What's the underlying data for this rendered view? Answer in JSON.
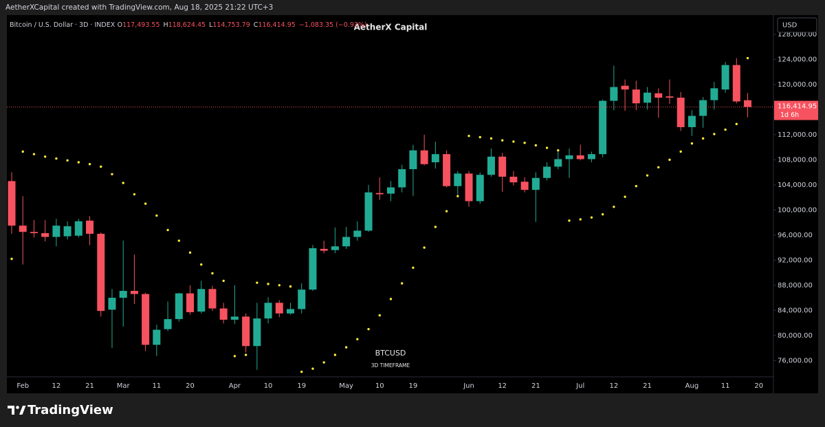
{
  "attribution": "AetherXCapital created with TradingView.com, Aug 18, 2025 21:22 UTC+3",
  "brand": "TradingView",
  "chart_data": {
    "type": "candlestick",
    "title": "AetherX Capital",
    "symbol": "Bitcoin / U.S. Dollar · 3D · INDEX",
    "legend_values": [
      {
        "label": "O",
        "value": "117,493.55"
      },
      {
        "label": "H",
        "value": "118,624.45"
      },
      {
        "label": "L",
        "value": "114,753.79"
      },
      {
        "label": "C",
        "value": "116,414.95"
      }
    ],
    "change": "−1,083.35 (−0.92%)",
    "watermark": "BTCUSD",
    "watermark_sub": "3D TIMEFRAME",
    "currency": "USD",
    "last_price_label": "116,414.95",
    "countdown": "1d 6h",
    "up_color": "#22ab94",
    "down_color": "#f7525f",
    "sar_color": "#ffeb3b",
    "grid": false,
    "categories": [
      null,
      "Feb",
      null,
      null,
      "12",
      null,
      null,
      "21",
      null,
      null,
      "Mar",
      null,
      null,
      "11",
      null,
      null,
      "20",
      null,
      null,
      null,
      "Apr",
      null,
      null,
      "10",
      null,
      null,
      "19",
      null,
      null,
      null,
      "May",
      null,
      null,
      "10",
      null,
      null,
      "19",
      null,
      null,
      null,
      null,
      "Jun",
      null,
      null,
      "12",
      null,
      null,
      "21",
      null,
      null,
      null,
      "Jul",
      null,
      null,
      "12",
      null,
      null,
      "21",
      null,
      null,
      null,
      "Aug",
      null,
      null,
      "11",
      null,
      null,
      "20"
    ],
    "open": [
      104600,
      97500,
      96500,
      96300,
      95700,
      95800,
      95900,
      98300,
      96200,
      84100,
      86000,
      87100,
      86600,
      78500,
      81000,
      82600,
      86700,
      83800,
      87400,
      84300,
      82500,
      83000,
      78300,
      82700,
      85200,
      83500,
      84200,
      87300,
      93800,
      93600,
      94200,
      95700,
      96700,
      102700,
      102600,
      103600,
      106500,
      109500,
      107600,
      108900,
      103800,
      105800,
      101400,
      105600,
      108500,
      105300,
      104500,
      103200,
      105100,
      106900,
      108100,
      108700,
      108100,
      108900,
      117400,
      119800,
      119200,
      117100,
      118600,
      118100,
      117900,
      113200,
      115000,
      117500,
      119200,
      123100,
      117493.55,
      null
    ],
    "high": [
      106000,
      102200,
      98400,
      98400,
      98600,
      98200,
      98600,
      99000,
      96400,
      87400,
      95100,
      92900,
      86800,
      81700,
      85400,
      86800,
      88000,
      88700,
      87900,
      85200,
      88000,
      83500,
      85200,
      86100,
      85600,
      85200,
      88300,
      94400,
      95100,
      97200,
      97300,
      98200,
      104000,
      105200,
      104600,
      107200,
      110400,
      112000,
      110900,
      109500,
      106200,
      106200,
      106000,
      109800,
      109100,
      106200,
      105200,
      106000,
      107600,
      109300,
      109800,
      110400,
      109300,
      117600,
      123000,
      120800,
      120600,
      119600,
      119400,
      120800,
      118800,
      115900,
      118000,
      120400,
      123600,
      124200,
      118624.45,
      null
    ],
    "low": [
      96200,
      91300,
      95600,
      95000,
      94200,
      95300,
      95600,
      94400,
      83000,
      78000,
      81400,
      85000,
      77500,
      76700,
      80700,
      82200,
      83300,
      83500,
      83900,
      81900,
      81800,
      77300,
      74500,
      81900,
      82900,
      83300,
      83500,
      87100,
      93100,
      93100,
      93800,
      95100,
      96500,
      101600,
      101400,
      102800,
      102200,
      107100,
      106600,
      103600,
      102200,
      100500,
      101000,
      105300,
      102900,
      103900,
      102800,
      98100,
      104700,
      106500,
      105100,
      107900,
      107600,
      108400,
      115900,
      115800,
      115900,
      116000,
      114700,
      116900,
      112600,
      111800,
      113100,
      116000,
      118700,
      117000,
      114753.79,
      null
    ],
    "close": [
      97500,
      96500,
      96300,
      95700,
      97500,
      97400,
      98200,
      96200,
      83900,
      86000,
      87100,
      86600,
      78500,
      80900,
      82600,
      86700,
      83700,
      87400,
      84300,
      82500,
      83000,
      78300,
      82700,
      85200,
      83500,
      84200,
      87300,
      93900,
      93500,
      94200,
      95700,
      96700,
      102800,
      102500,
      103600,
      106500,
      109500,
      107300,
      108900,
      103800,
      105800,
      101400,
      105600,
      108500,
      105300,
      104400,
      103200,
      105100,
      106900,
      108100,
      108700,
      108100,
      108900,
      117400,
      119600,
      119200,
      117000,
      118700,
      117900,
      117900,
      113200,
      115000,
      117500,
      119400,
      123100,
      117300,
      116414.95,
      null
    ],
    "sar": [
      92200,
      109300,
      108900,
      108500,
      108200,
      107900,
      107600,
      107300,
      106900,
      105700,
      104300,
      102500,
      101000,
      99100,
      96800,
      95100,
      93200,
      91300,
      89900,
      88700,
      76700,
      76900,
      88400,
      88200,
      88000,
      87800,
      74200,
      74700,
      75700,
      76900,
      78100,
      79400,
      81000,
      83200,
      85800,
      88300,
      90800,
      94000,
      97300,
      99800,
      102200,
      111800,
      111600,
      111400,
      111100,
      110900,
      110700,
      110300,
      109900,
      109500,
      98300,
      98500,
      98800,
      99300,
      100500,
      102100,
      103800,
      105500,
      106800,
      108000,
      109300,
      110600,
      111400,
      112100,
      112800,
      113700,
      124200,
      null
    ],
    "ylim": [
      73400,
      130400
    ],
    "yticks": [
      {
        "value": 76000,
        "label": "76,000.00"
      },
      {
        "value": 80000,
        "label": "80,000.00"
      },
      {
        "value": 84000,
        "label": "84,000.00"
      },
      {
        "value": 88000,
        "label": "88,000.00"
      },
      {
        "value": 92000,
        "label": "92,000.00"
      },
      {
        "value": 96000,
        "label": "96,000.00"
      },
      {
        "value": 100000,
        "label": "100,000.00"
      },
      {
        "value": 104000,
        "label": "104,000.00"
      },
      {
        "value": 108000,
        "label": "108,000.00"
      },
      {
        "value": 112000,
        "label": "112,000.00"
      },
      {
        "value": 116000,
        "label": "116,000.00"
      },
      {
        "value": 120000,
        "label": "120,000.00"
      },
      {
        "value": 124000,
        "label": "124,000.00"
      },
      {
        "value": 128000,
        "label": "128,000.00"
      }
    ]
  }
}
